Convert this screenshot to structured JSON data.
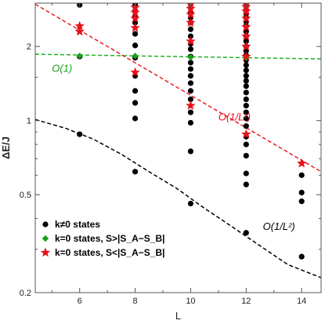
{
  "chart_data": {
    "type": "scatter",
    "title": "",
    "xlabel": "L",
    "ylabel": "ΔE/J",
    "xlim": [
      4.4,
      14.7
    ],
    "ylim": [
      0.2,
      3.0
    ],
    "yscale": "log",
    "x_ticks": [
      "6",
      "8",
      "10",
      "12",
      "14"
    ],
    "y_ticks": [
      "0.2",
      "0.5",
      "1",
      "2"
    ],
    "legend_position": "bottom-left",
    "legend": [
      {
        "label": "k≠0 states",
        "marker": "circle",
        "color": "#000000"
      },
      {
        "label": "k=0 states, S>|S_A−S_B|",
        "marker": "diamond",
        "color": "#1a9e1a"
      },
      {
        "label": "k=0 states, S<|S_A−S_B|",
        "marker": "star",
        "color": "#e8101a"
      }
    ],
    "series": [
      {
        "name": "k≠0 states",
        "marker": "circle",
        "color": "#000000",
        "points": [
          [
            6,
            0.88
          ],
          [
            6,
            1.82
          ],
          [
            6,
            2.95
          ],
          [
            8,
            0.62
          ],
          [
            8,
            1.02
          ],
          [
            8,
            1.18
          ],
          [
            8,
            1.32
          ],
          [
            8,
            1.52
          ],
          [
            8,
            1.8
          ],
          [
            8,
            2.02
          ],
          [
            8,
            2.25
          ],
          [
            8,
            2.5
          ],
          [
            8,
            2.65
          ],
          [
            8,
            2.8
          ],
          [
            8,
            2.95
          ],
          [
            10,
            0.46
          ],
          [
            10,
            0.75
          ],
          [
            10,
            0.98
          ],
          [
            10,
            1.08
          ],
          [
            10,
            1.22
          ],
          [
            10,
            1.32
          ],
          [
            10,
            1.42
          ],
          [
            10,
            1.52
          ],
          [
            10,
            1.62
          ],
          [
            10,
            1.72
          ],
          [
            10,
            1.82
          ],
          [
            10,
            1.95
          ],
          [
            10,
            2.05
          ],
          [
            10,
            2.2
          ],
          [
            10,
            2.35
          ],
          [
            10,
            2.5
          ],
          [
            10,
            2.62
          ],
          [
            10,
            2.75
          ],
          [
            10,
            2.88
          ],
          [
            10,
            2.98
          ],
          [
            12,
            0.35
          ],
          [
            12,
            0.55
          ],
          [
            12,
            0.61
          ],
          [
            12,
            0.72
          ],
          [
            12,
            0.8
          ],
          [
            12,
            0.86
          ],
          [
            12,
            0.95
          ],
          [
            12,
            1.02
          ],
          [
            12,
            1.08
          ],
          [
            12,
            1.15
          ],
          [
            12,
            1.22
          ],
          [
            12,
            1.3
          ],
          [
            12,
            1.38
          ],
          [
            12,
            1.45
          ],
          [
            12,
            1.52
          ],
          [
            12,
            1.6
          ],
          [
            12,
            1.68
          ],
          [
            12,
            1.76
          ],
          [
            12,
            1.84
          ],
          [
            12,
            1.92
          ],
          [
            12,
            2.0
          ],
          [
            12,
            2.1
          ],
          [
            12,
            2.2
          ],
          [
            12,
            2.3
          ],
          [
            12,
            2.42
          ],
          [
            12,
            2.52
          ],
          [
            12,
            2.62
          ],
          [
            12,
            2.72
          ],
          [
            12,
            2.82
          ],
          [
            12,
            2.92
          ],
          [
            12,
            2.99
          ],
          [
            14,
            0.28
          ],
          [
            14,
            0.47
          ],
          [
            14,
            0.51
          ],
          [
            14,
            0.6
          ]
        ]
      },
      {
        "name": "k=0 states, S>|S_A−S_B|",
        "marker": "diamond",
        "color": "#1a9e1a",
        "points": [
          [
            6,
            1.83
          ],
          [
            8,
            1.83
          ],
          [
            10,
            1.81
          ],
          [
            12,
            1.8
          ]
        ]
      },
      {
        "name": "k=0 states, S<|S_A−S_B|",
        "marker": "star",
        "color": "#e8101a",
        "points": [
          [
            6,
            2.3
          ],
          [
            6,
            2.42
          ],
          [
            8,
            1.57
          ],
          [
            8,
            2.38
          ],
          [
            8,
            2.6
          ],
          [
            8,
            2.75
          ],
          [
            8,
            2.88
          ],
          [
            10,
            1.15
          ],
          [
            10,
            2.1
          ],
          [
            10,
            2.5
          ],
          [
            10,
            2.7
          ],
          [
            10,
            2.85
          ],
          [
            10,
            2.97
          ],
          [
            12,
            0.88
          ],
          [
            12,
            1.82
          ],
          [
            12,
            2.0
          ],
          [
            12,
            2.2
          ],
          [
            12,
            2.4
          ],
          [
            12,
            2.6
          ],
          [
            12,
            2.78
          ],
          [
            12,
            2.9
          ],
          [
            12,
            2.99
          ],
          [
            14,
            0.67
          ]
        ]
      }
    ],
    "fit_lines": [
      {
        "style": "dashed",
        "color": "#1eb41e",
        "label": "O(1)",
        "x": [
          4.4,
          14.7
        ],
        "y": [
          1.86,
          1.78
        ]
      },
      {
        "style": "dashed",
        "color": "#ee1c25",
        "label": "O(1/L²)",
        "x": [
          4.4,
          14.7
        ],
        "y": [
          2.97,
          0.62
        ]
      },
      {
        "style": "dashed",
        "color": "#000000",
        "label": "O(1/L²)",
        "x": [
          4.4,
          5.5,
          6.5,
          7.5,
          8.5,
          9.5,
          10.5,
          11.5,
          12.5,
          13.5,
          14.7
        ],
        "y": [
          1.01,
          0.93,
          0.84,
          0.73,
          0.62,
          0.53,
          0.44,
          0.37,
          0.31,
          0.26,
          0.23
        ]
      }
    ],
    "annotations": [
      {
        "text": "O(1)",
        "color": "#1a9e1a",
        "x": 5.0,
        "y": 1.58
      },
      {
        "text": "O(1/L²)",
        "color": "#e8101a",
        "x": 11.0,
        "y": 1.0
      },
      {
        "text": "O(1/L²)",
        "color": "#000000",
        "x": 12.6,
        "y": 0.36
      }
    ]
  }
}
